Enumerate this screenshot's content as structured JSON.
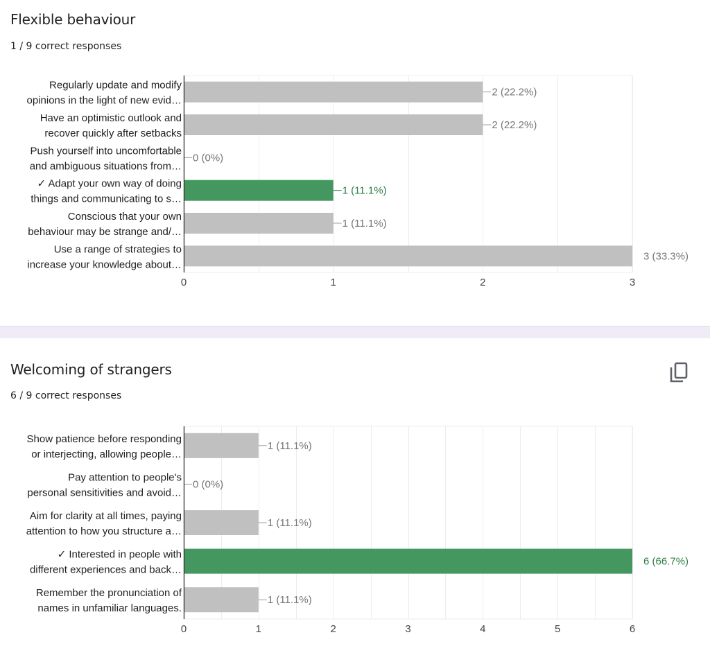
{
  "colors": {
    "bar_default": "#c0c0c0",
    "bar_correct": "#44975e",
    "label_correct": "#2e7d46",
    "label_default": "#757575",
    "separator": "#efebf7"
  },
  "questions": [
    {
      "title": "Flexible behaviour",
      "subtitle": "1 / 9 correct responses",
      "has_copy_icon": false
    },
    {
      "title": "Welcoming of strangers",
      "subtitle": "6 / 9 correct responses",
      "has_copy_icon": true,
      "copy_icon": "copy-icon"
    }
  ],
  "chart_data": [
    {
      "type": "bar",
      "orientation": "horizontal",
      "title": "Flexible behaviour",
      "categories": [
        [
          "Regularly update and modify",
          "opinions in the light of new evid…"
        ],
        [
          "Have an optimistic outlook and",
          "recover quickly after setbacks"
        ],
        [
          "Push yourself into uncomfortable",
          "and ambiguous situations from…"
        ],
        [
          "✓ Adapt your own way of doing",
          "things and communicating to s…"
        ],
        [
          "Conscious that your own",
          "behaviour may be strange and/…"
        ],
        [
          "Use a range of strategies to",
          "increase your knowledge about…"
        ]
      ],
      "values": [
        2,
        2,
        0,
        1,
        1,
        3
      ],
      "value_labels": [
        "2 (22.2%)",
        "2 (22.2%)",
        "0 (0%)",
        "1 (11.1%)",
        "1 (11.1%)",
        "3 (33.3%)"
      ],
      "correct": [
        false,
        false,
        false,
        true,
        false,
        false
      ],
      "xlim": [
        0,
        3
      ],
      "xticks": [
        "0",
        "1",
        "2",
        "3"
      ],
      "gridlines_every": 0.5,
      "grid": true,
      "xlabel": "",
      "ylabel": ""
    },
    {
      "type": "bar",
      "orientation": "horizontal",
      "title": "Welcoming of strangers",
      "categories": [
        [
          "Show patience before responding",
          "or interjecting, allowing people…"
        ],
        [
          "Pay attention to people's",
          "personal sensitivities and avoid…"
        ],
        [
          "Aim for clarity at all times, paying",
          "attention to how you structure a…"
        ],
        [
          "✓ Interested in people with",
          "different experiences and back…"
        ],
        [
          "Remember the pronunciation of",
          "names in unfamiliar languages."
        ]
      ],
      "values": [
        1,
        0,
        1,
        6,
        1
      ],
      "value_labels": [
        "1 (11.1%)",
        "0 (0%)",
        "1 (11.1%)",
        "6 (66.7%)",
        "1 (11.1%)"
      ],
      "correct": [
        false,
        false,
        false,
        true,
        false
      ],
      "xlim": [
        0,
        6
      ],
      "xticks": [
        "0",
        "1",
        "2",
        "3",
        "4",
        "5",
        "6"
      ],
      "gridlines_every": 0.5,
      "grid": true,
      "xlabel": "",
      "ylabel": ""
    }
  ]
}
